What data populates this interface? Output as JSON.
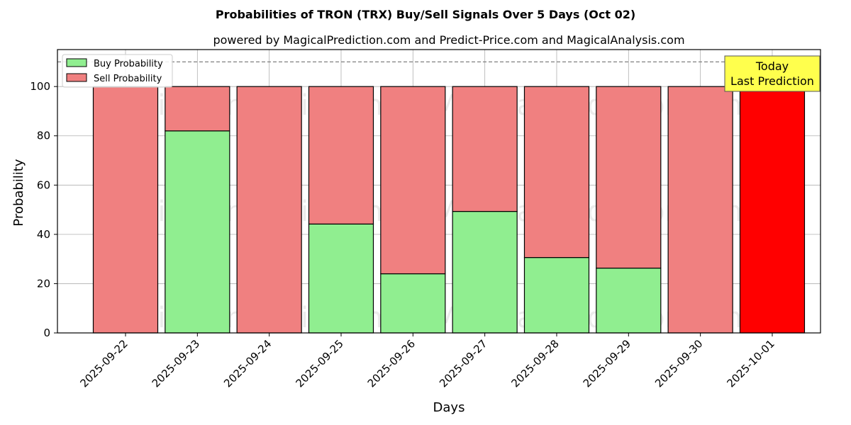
{
  "chart_data": {
    "type": "bar",
    "stacked": true,
    "title": "Probabilities of TRON (TRX) Buy/Sell Signals Over 5 Days (Oct 02)",
    "subtitle": "powered by MagicalPrediction.com and Predict-Price.com and MagicalAnalysis.com",
    "xlabel": "Days",
    "ylabel": "Probability",
    "ylim": [
      0,
      115
    ],
    "yticks": [
      0,
      20,
      40,
      60,
      80,
      100
    ],
    "grid": true,
    "legend_placement": "top-left",
    "reference_line": 110,
    "categories": [
      "2025-09-22",
      "2025-09-23",
      "2025-09-24",
      "2025-09-25",
      "2025-09-26",
      "2025-09-27",
      "2025-09-28",
      "2025-09-29",
      "2025-09-30",
      "2025-10-01"
    ],
    "series": [
      {
        "name": "Buy Probability",
        "color": "#90ee90",
        "values": [
          0,
          82,
          0,
          44.2,
          24,
          49.3,
          30.6,
          26.3,
          0,
          0
        ]
      },
      {
        "name": "Sell Probability",
        "color": "#f08080",
        "values": [
          100,
          18,
          100,
          55.8,
          76,
          50.7,
          69.4,
          73.7,
          100,
          100
        ]
      }
    ],
    "highlight": {
      "category": "2025-10-01",
      "color": "#ff0000"
    },
    "annotation": {
      "lines": [
        "Today",
        "Last Prediction"
      ],
      "background": "#ffff4d"
    },
    "watermarks": [
      "MagicalAnalysis.com",
      "MagicalPrediction.com"
    ]
  }
}
